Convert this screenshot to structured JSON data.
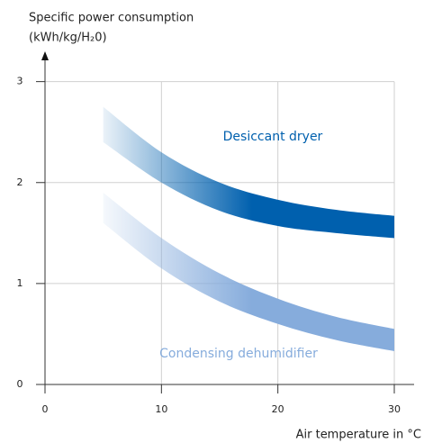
{
  "chart_data": {
    "type": "band",
    "ylabel_lines": [
      "Specific power consumption",
      "(kWh/kg/H₂0)"
    ],
    "xlabel": "Air temperature in °C",
    "x": [
      5,
      10,
      15,
      20,
      25,
      30
    ],
    "series": [
      {
        "name": "Desiccant dryer",
        "color": "#0060ae",
        "high": [
          2.75,
          2.3,
          2.0,
          1.83,
          1.73,
          1.67
        ],
        "low": [
          2.4,
          2.0,
          1.72,
          1.57,
          1.5,
          1.45
        ]
      },
      {
        "name": "Condensing dehumidifier",
        "color": "#86acdc",
        "high": [
          1.9,
          1.45,
          1.1,
          0.85,
          0.67,
          0.55
        ],
        "low": [
          1.6,
          1.15,
          0.82,
          0.6,
          0.44,
          0.33
        ]
      }
    ],
    "xlim": [
      0,
      31.7
    ],
    "ylim": [
      0,
      3.3
    ],
    "xticks": [
      0,
      10,
      20,
      30
    ],
    "yticks": [
      0,
      1,
      2,
      3
    ],
    "grid": true
  }
}
